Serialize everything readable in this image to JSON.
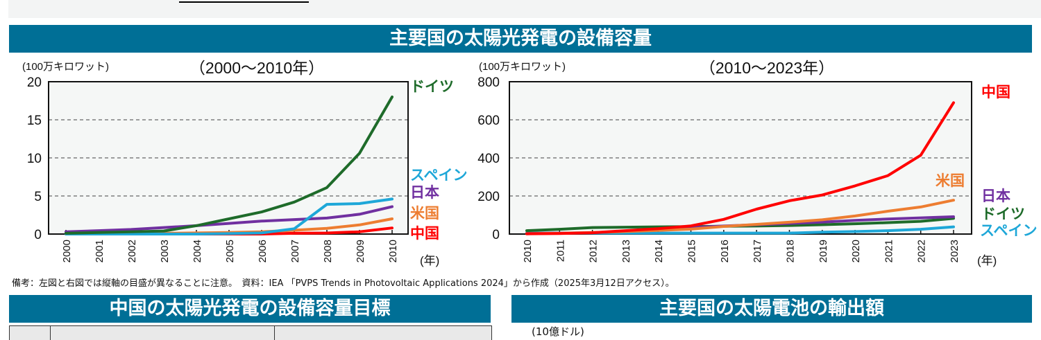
{
  "header": {
    "title": "主要国の太陽光発電の設備容量"
  },
  "note": "備考：左図と右図では縦軸の目盛が異なることに注意。　資料：IEA 「PVPS Trends in Photovoltaic Applications 2024」から作成（2025年3月12日アクセス）。",
  "bottom": {
    "left_title": "中国の太陽光発電の設備容量目標",
    "right_title": "主要国の太陽電池の輸出額",
    "right_unit": "(10億ドル)"
  },
  "chart_data": [
    {
      "type": "line",
      "title": "（2000～2010年）",
      "ylabel": "(100万キロワット)",
      "xunit": "(年)",
      "ylim": [
        0,
        20
      ],
      "yticks": [
        0,
        5,
        10,
        15,
        20
      ],
      "grid": "dashed-horizontal",
      "x": [
        2000,
        2001,
        2002,
        2003,
        2004,
        2005,
        2006,
        2007,
        2008,
        2009,
        2010
      ],
      "series": [
        {
          "name": "ドイツ",
          "color": "#1e6b2a",
          "values": [
            0.1,
            0.2,
            0.3,
            0.4,
            1.1,
            2.0,
            2.9,
            4.2,
            6.1,
            10.6,
            18.0
          ]
        },
        {
          "name": "スペイン",
          "color": "#1ea7d8",
          "values": [
            0,
            0,
            0,
            0,
            0,
            0.05,
            0.15,
            0.7,
            3.9,
            4.0,
            4.6
          ]
        },
        {
          "name": "日本",
          "color": "#7030a0",
          "values": [
            0.3,
            0.45,
            0.6,
            0.85,
            1.1,
            1.4,
            1.7,
            1.9,
            2.1,
            2.6,
            3.6
          ]
        },
        {
          "name": "米国",
          "color": "#ed7d31",
          "values": [
            0.02,
            0.03,
            0.05,
            0.1,
            0.15,
            0.2,
            0.3,
            0.5,
            0.75,
            1.2,
            2.0
          ]
        },
        {
          "name": "中国",
          "color": "#ff0000",
          "values": [
            0,
            0,
            0,
            0,
            0,
            0,
            0,
            0.1,
            0.14,
            0.3,
            0.8
          ]
        }
      ]
    },
    {
      "type": "line",
      "title": "（2010～2023年）",
      "ylabel": "(100万キロワット)",
      "xunit": "(年)",
      "ylim": [
        0,
        800
      ],
      "yticks": [
        0,
        200,
        400,
        600,
        800
      ],
      "grid": "dashed-horizontal",
      "x": [
        2010,
        2011,
        2012,
        2013,
        2014,
        2015,
        2016,
        2017,
        2018,
        2019,
        2020,
        2021,
        2022,
        2023
      ],
      "series": [
        {
          "name": "中国",
          "color": "#ff0000",
          "values": [
            1,
            3,
            7,
            18,
            28,
            43,
            77,
            131,
            175,
            205,
            253,
            307,
            414,
            690
          ]
        },
        {
          "name": "米国",
          "color": "#ed7d31",
          "values": [
            2,
            4,
            8,
            13,
            19,
            26,
            40,
            51,
            62,
            75,
            95,
            120,
            142,
            178
          ]
        },
        {
          "name": "日本",
          "color": "#7030a0",
          "values": [
            3.6,
            5,
            7,
            14,
            23,
            34,
            42,
            49,
            56,
            63,
            72,
            79,
            85,
            91
          ]
        },
        {
          "name": "ドイツ",
          "color": "#1e6b2a",
          "values": [
            18,
            25,
            34,
            36,
            38,
            39,
            41,
            42,
            45,
            49,
            54,
            60,
            67,
            82
          ]
        },
        {
          "name": "スペイン",
          "color": "#1ea7d8",
          "values": [
            4.6,
            5,
            5,
            5,
            5,
            5,
            5,
            5,
            5,
            10,
            13,
            18,
            25,
            38
          ]
        }
      ]
    }
  ]
}
